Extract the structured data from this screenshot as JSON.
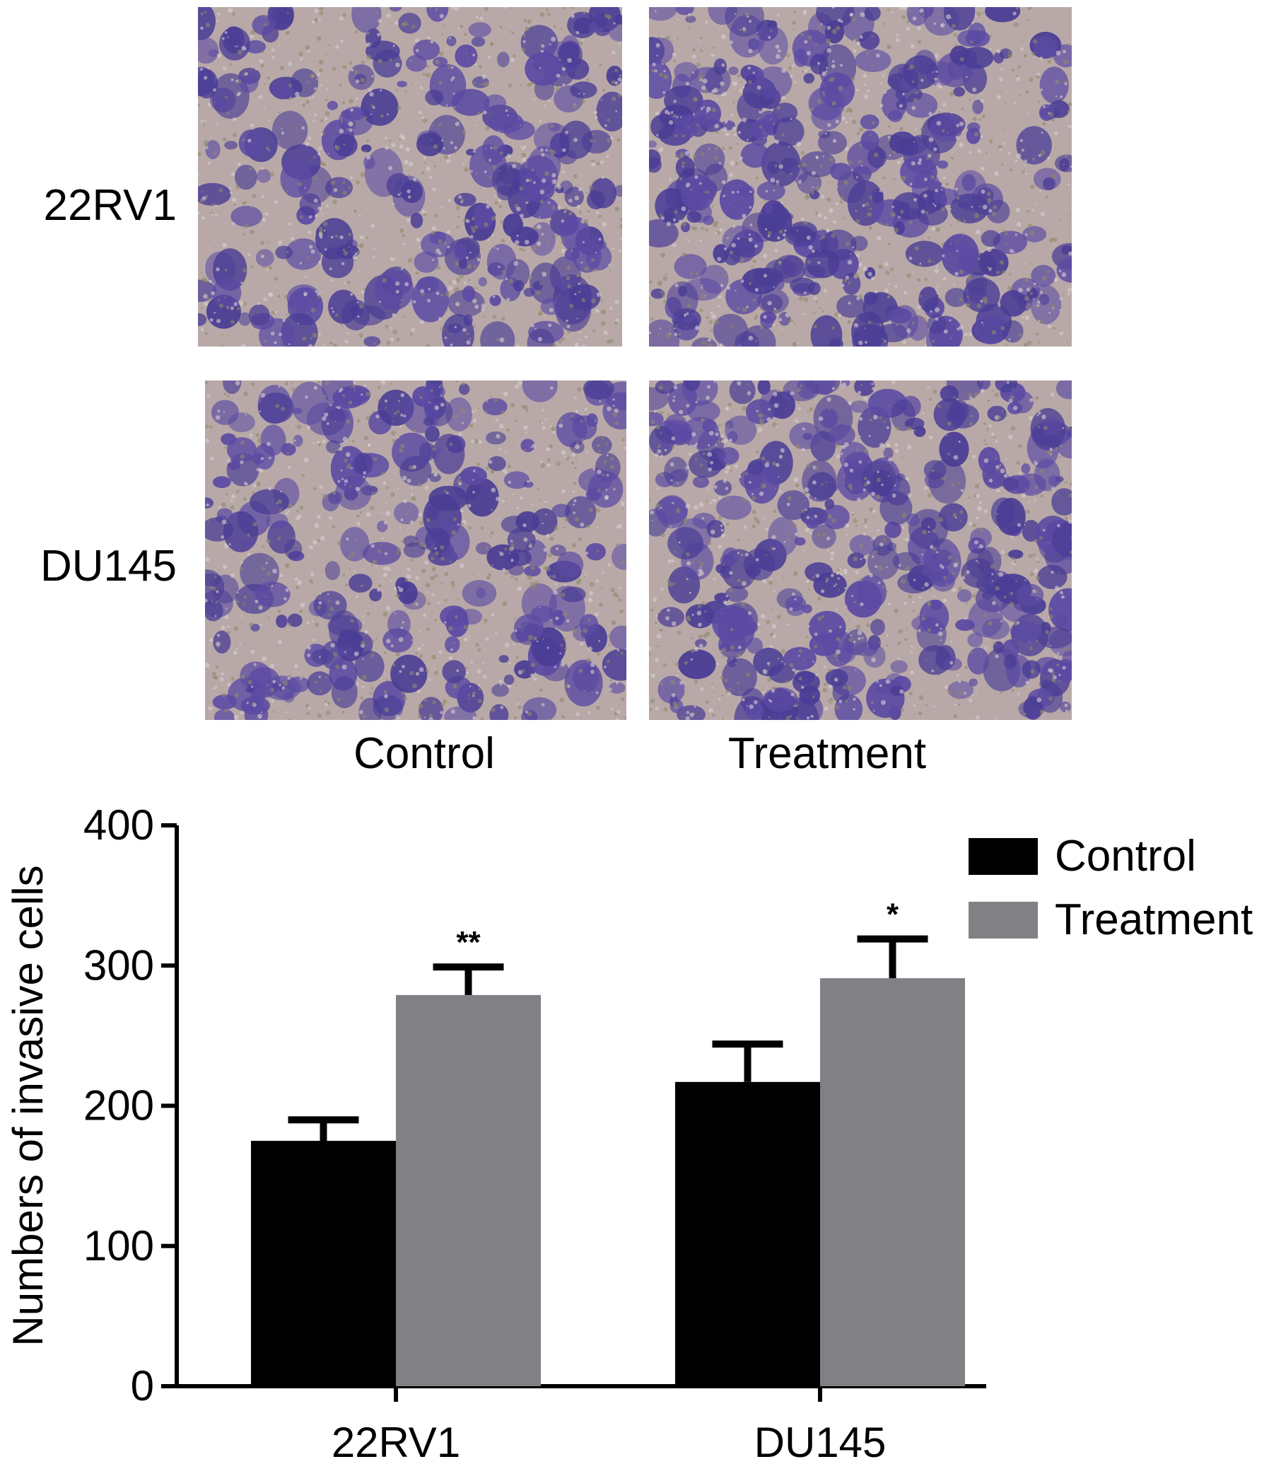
{
  "figure": {
    "row_labels": [
      "22RV1",
      "DU145"
    ],
    "column_labels": [
      "Control",
      "Treatment"
    ],
    "panel_colors": {
      "background": "#b8a9a8",
      "stain": "#5b4aa3",
      "dark_stain": "#4a3d95"
    },
    "panels": [
      {
        "row": "22RV1",
        "column": "Control",
        "density": 0.35
      },
      {
        "row": "22RV1",
        "column": "Treatment",
        "density": 0.6
      },
      {
        "row": "DU145",
        "column": "Control",
        "density": 0.38
      },
      {
        "row": "DU145",
        "column": "Treatment",
        "density": 0.62
      }
    ]
  },
  "chart_data": {
    "type": "bar",
    "categories": [
      "22RV1",
      "DU145"
    ],
    "series": [
      {
        "name": "Control",
        "color": "#000000",
        "values": [
          175,
          217
        ],
        "errors": [
          15,
          27
        ]
      },
      {
        "name": "Treatment",
        "color": "#808085",
        "values": [
          279,
          291
        ],
        "errors": [
          20,
          28
        ]
      }
    ],
    "significance": [
      {
        "category": "22RV1",
        "series": "Treatment",
        "label": "**"
      },
      {
        "category": "DU145",
        "series": "Treatment",
        "label": "*"
      }
    ],
    "ylabel": "Numbers of invasive cells",
    "xlabel": "",
    "ylim": [
      0,
      400
    ],
    "yticks": [
      0,
      100,
      200,
      300,
      400
    ],
    "ytick_labels": [
      "0",
      "100",
      "200",
      "300",
      "400"
    ],
    "legend_position": "top-right",
    "grid": false
  }
}
